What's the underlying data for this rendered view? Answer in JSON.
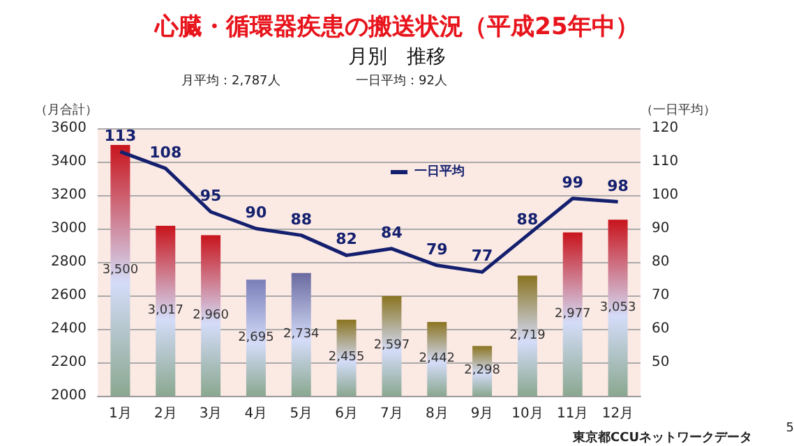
{
  "chart_data": {
    "type": "bar",
    "title": "心臓・循環器疾患の搬送状況（平成25年中）",
    "subtitle": "月別　推移",
    "ylabel": "（月合計）",
    "y2label": "（一日平均）",
    "annotations": [
      "月平均：2,787人",
      "一日平均：92人",
      "東京都CCUネットワークデータ",
      "5"
    ],
    "categories": [
      "1月",
      "2月",
      "3月",
      "4月",
      "5月",
      "6月",
      "7月",
      "8月",
      "9月",
      "10月",
      "11月",
      "12月"
    ],
    "series": [
      {
        "colors": [
          "#c8141c",
          "#c8141c",
          "#c8141c",
          "#7a7fb8",
          "#6a6aa0",
          "#8a7420",
          "#8a7420",
          "#8a7420",
          "#8a7420",
          "#8a7420",
          "#c8141c",
          "#c8141c"
        ],
        "values": [
          3500,
          3017,
          2960,
          2695,
          2734,
          2455,
          2597,
          2442,
          2298,
          2719,
          2977,
          3053
        ],
        "value_labels": [
          "3,500",
          "3,017",
          "2,960",
          "2,695",
          "2,734",
          "2,455",
          "2,597",
          "2,442",
          "2,298",
          "2,719",
          "2,977",
          "3,053"
        ]
      },
      {
        "type": "line",
        "name": "一日平均",
        "color": "#14206e",
        "axis": "y2",
        "data_labels": true,
        "values": [
          113,
          108,
          95,
          90,
          88,
          82,
          84,
          79,
          77,
          88,
          99,
          98
        ]
      }
    ],
    "ylim": [
      2000,
      3600
    ],
    "yticks": [
      2000,
      2200,
      2400,
      2600,
      2800,
      3000,
      3200,
      3400,
      3600
    ],
    "y2lim": [
      40,
      120
    ],
    "y2ticks": [
      50,
      60,
      70,
      80,
      90,
      100,
      110,
      120
    ],
    "grid": "y",
    "legend": "top",
    "marker": "none",
    "line_style": "solid"
  }
}
